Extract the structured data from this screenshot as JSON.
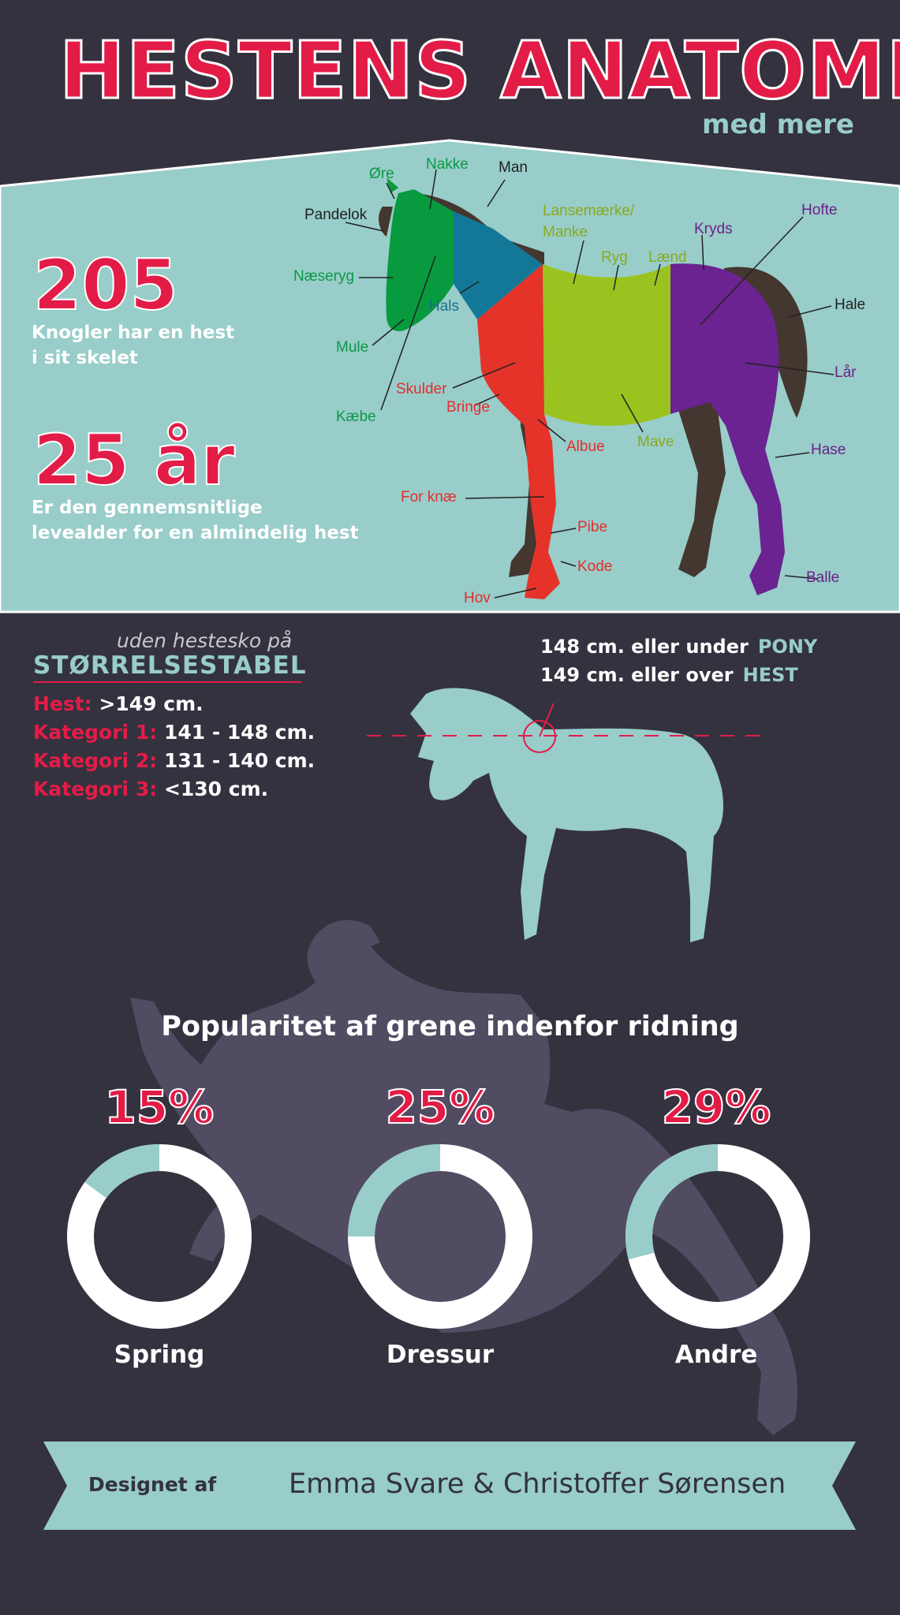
{
  "header": {
    "title": "HESTENS ANATOMI",
    "subtitle": "med mere"
  },
  "stats": [
    {
      "value": "205",
      "label_line1": "Knogler har en hest",
      "label_line2": "i sit skelet"
    },
    {
      "value": "25 år",
      "label_line1": "Er den gennemsnitlige",
      "label_line2": "levealder for en almindelig hest"
    }
  ],
  "anatomy": {
    "labels": {
      "ore": "Øre",
      "nakke": "Nakke",
      "man": "Man",
      "pandelok": "Pandelok",
      "naeseryg": "Næseryg",
      "hals": "Hals",
      "mule": "Mule",
      "kaebe": "Kæbe",
      "lansemaerke1": "Lansemærke/",
      "lansemaerke2": "Manke",
      "ryg": "Ryg",
      "laend": "Lænd",
      "kryds": "Kryds",
      "hofte": "Hofte",
      "hale": "Hale",
      "lar": "Lår",
      "skulder": "Skulder",
      "bringe": "Bringe",
      "albue": "Albue",
      "mave": "Mave",
      "hase": "Hase",
      "forknae": "For knæ",
      "pibe": "Pibe",
      "kode": "Kode",
      "hov": "Hov",
      "balle": "Balle"
    },
    "colors": {
      "head": "#079a3e",
      "neck": "#137897",
      "front": "#e5332a",
      "body": "#9bc31f",
      "hind": "#6a2390",
      "dark": "#44372f"
    }
  },
  "size_table": {
    "note": "uden hestesko på",
    "title": "STØRRELSESTABEL",
    "rows": [
      {
        "key": "Hest:",
        "value": ">149 cm."
      },
      {
        "key": "Kategori 1:",
        "value": "141 - 148 cm."
      },
      {
        "key": "Kategori 2:",
        "value": "131 - 140 cm."
      },
      {
        "key": "Kategori 3:",
        "value": "<130 cm."
      }
    ]
  },
  "pony_horse": {
    "line1_text": "148 cm. eller under",
    "line1_label": "PONY",
    "line2_text": "149 cm. eller over",
    "line2_label": "HEST"
  },
  "popularity": {
    "title": "Popularitet af grene indenfor ridning",
    "items": [
      {
        "pct_label": "15%",
        "value": 15,
        "name": "Spring"
      },
      {
        "pct_label": "25%",
        "value": 25,
        "name": "Dressur"
      },
      {
        "pct_label": "29%",
        "value": 29,
        "name": "Andre"
      }
    ]
  },
  "footer": {
    "label": "Designet af",
    "names": "Emma Svare & Christoffer Sørensen"
  },
  "colors": {
    "background": "#34323f",
    "accent_red": "#e31c47",
    "accent_teal": "#98cdc9",
    "rider_silhouette": "#514c62"
  }
}
